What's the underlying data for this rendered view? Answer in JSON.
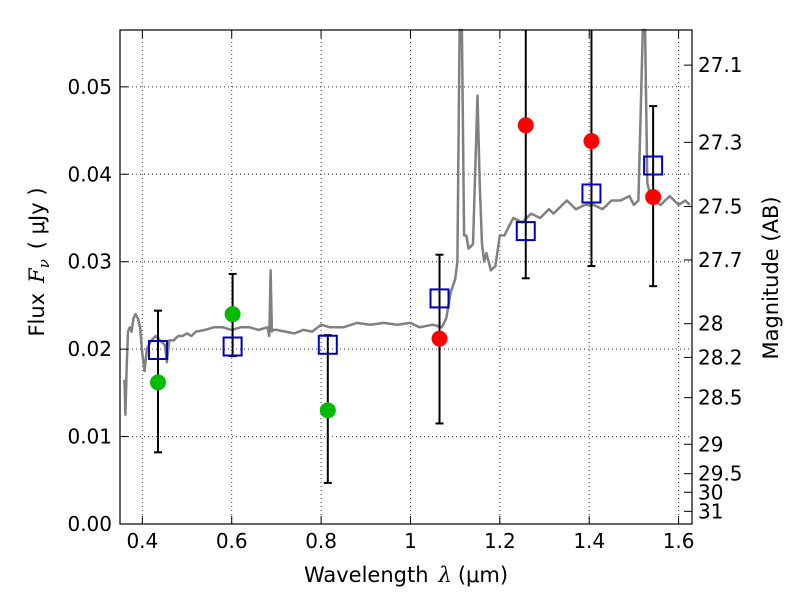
{
  "chart_data": {
    "type": "scatter",
    "xlabel": "Wavelength",
    "xlabel_symbol": "λ",
    "xlabel_unit": "(μm)",
    "ylabel": "Flux",
    "ylabel_symbol": "F",
    "ylabel_subscript": "ν",
    "ylabel_unit": "( μJy )",
    "y2label": "Magnitude (AB)",
    "xlim": [
      0.35,
      1.63
    ],
    "ylim": [
      0.0,
      0.0565
    ],
    "grid": true,
    "x_ticks": [
      0.4,
      0.6,
      0.8,
      1.0,
      1.2,
      1.4,
      1.6
    ],
    "x_tick_labels": [
      "0.4",
      "0.6",
      "0.8",
      "1",
      "1.2",
      "1.4",
      "1.6"
    ],
    "y_ticks": [
      0.0,
      0.01,
      0.02,
      0.03,
      0.04,
      0.05
    ],
    "y_tick_labels": [
      "0.00",
      "0.01",
      "0.02",
      "0.03",
      "0.04",
      "0.05"
    ],
    "mag_ticks": [
      "27.1",
      "27.3",
      "27.5",
      "27.7",
      "28",
      "28.2",
      "28.5",
      "29",
      "29.5",
      "30",
      "31"
    ],
    "template": {
      "name": "model spectrum",
      "color": "#808080",
      "x": [
        0.36,
        0.362,
        0.365,
        0.368,
        0.372,
        0.376,
        0.38,
        0.385,
        0.39,
        0.395,
        0.4,
        0.405,
        0.41,
        0.42,
        0.43,
        0.44,
        0.45,
        0.455,
        0.46,
        0.47,
        0.48,
        0.49,
        0.5,
        0.51,
        0.52,
        0.54,
        0.56,
        0.58,
        0.6,
        0.62,
        0.64,
        0.66,
        0.68,
        0.684,
        0.687,
        0.69,
        0.693,
        0.7,
        0.72,
        0.74,
        0.76,
        0.78,
        0.8,
        0.82,
        0.85,
        0.88,
        0.91,
        0.94,
        0.97,
        1.0,
        1.02,
        1.05,
        1.07,
        1.08,
        1.09,
        1.1,
        1.105,
        1.11,
        1.115,
        1.12,
        1.125,
        1.13,
        1.14,
        1.15,
        1.155,
        1.16,
        1.165,
        1.17,
        1.18,
        1.19,
        1.2,
        1.21,
        1.22,
        1.23,
        1.25,
        1.27,
        1.29,
        1.3,
        1.31,
        1.32,
        1.33,
        1.34,
        1.35,
        1.37,
        1.39,
        1.41,
        1.43,
        1.45,
        1.47,
        1.49,
        1.5,
        1.51,
        1.52,
        1.525,
        1.53,
        1.535,
        1.54,
        1.56,
        1.58,
        1.6,
        1.615,
        1.625
      ],
      "y": [
        0.0165,
        0.0125,
        0.018,
        0.022,
        0.0225,
        0.022,
        0.0235,
        0.024,
        0.0235,
        0.0225,
        0.0195,
        0.0175,
        0.02,
        0.021,
        0.0215,
        0.021,
        0.0205,
        0.0185,
        0.021,
        0.021,
        0.0215,
        0.0215,
        0.0218,
        0.0215,
        0.022,
        0.0222,
        0.0225,
        0.0225,
        0.0222,
        0.0225,
        0.0225,
        0.0222,
        0.0225,
        0.0215,
        0.029,
        0.022,
        0.0222,
        0.0222,
        0.022,
        0.0218,
        0.0222,
        0.022,
        0.0228,
        0.0225,
        0.0225,
        0.023,
        0.0228,
        0.023,
        0.0228,
        0.023,
        0.0225,
        0.0228,
        0.0225,
        0.0235,
        0.0265,
        0.028,
        0.03,
        0.0565,
        0.0565,
        0.033,
        0.033,
        0.0315,
        0.032,
        0.049,
        0.039,
        0.032,
        0.03,
        0.031,
        0.029,
        0.0295,
        0.033,
        0.033,
        0.034,
        0.035,
        0.0345,
        0.0355,
        0.035,
        0.0355,
        0.036,
        0.0355,
        0.036,
        0.0365,
        0.037,
        0.036,
        0.0365,
        0.0365,
        0.036,
        0.037,
        0.037,
        0.0375,
        0.0365,
        0.037,
        0.0565,
        0.0565,
        0.039,
        0.038,
        0.037,
        0.0365,
        0.0375,
        0.0365,
        0.037,
        0.0365
      ]
    },
    "series": [
      {
        "name": "green points",
        "marker": "circle",
        "color": "#00bb00",
        "points": [
          {
            "x": 0.435,
            "y": 0.0162
          },
          {
            "x": 0.602,
            "y": 0.024
          },
          {
            "x": 0.815,
            "y": 0.013
          }
        ]
      },
      {
        "name": "red points",
        "marker": "circle",
        "color": "#ff0000",
        "points": [
          {
            "x": 1.065,
            "y": 0.0212
          },
          {
            "x": 1.258,
            "y": 0.0456
          },
          {
            "x": 1.405,
            "y": 0.0438
          },
          {
            "x": 1.543,
            "y": 0.0374
          }
        ]
      },
      {
        "name": "model photometry",
        "marker": "open-square",
        "color": "#0000bb",
        "points": [
          {
            "x": 0.435,
            "y": 0.0199
          },
          {
            "x": 0.602,
            "y": 0.0203
          },
          {
            "x": 0.815,
            "y": 0.0205
          },
          {
            "x": 1.065,
            "y": 0.0258
          },
          {
            "x": 1.258,
            "y": 0.0335
          },
          {
            "x": 1.405,
            "y": 0.0378
          },
          {
            "x": 1.543,
            "y": 0.041
          }
        ]
      }
    ],
    "error_bars": [
      {
        "x": 0.435,
        "low": 0.0082,
        "high": 0.0244
      },
      {
        "x": 0.602,
        "low": 0.0192,
        "high": 0.0286
      },
      {
        "x": 0.815,
        "low": 0.0047,
        "high": 0.0216
      },
      {
        "x": 1.065,
        "low": 0.0115,
        "high": 0.0308
      },
      {
        "x": 1.258,
        "low": 0.0281,
        "high": 0.0565
      },
      {
        "x": 1.405,
        "low": 0.0295,
        "high": 0.0565
      },
      {
        "x": 1.543,
        "low": 0.0272,
        "high": 0.0478
      }
    ]
  }
}
